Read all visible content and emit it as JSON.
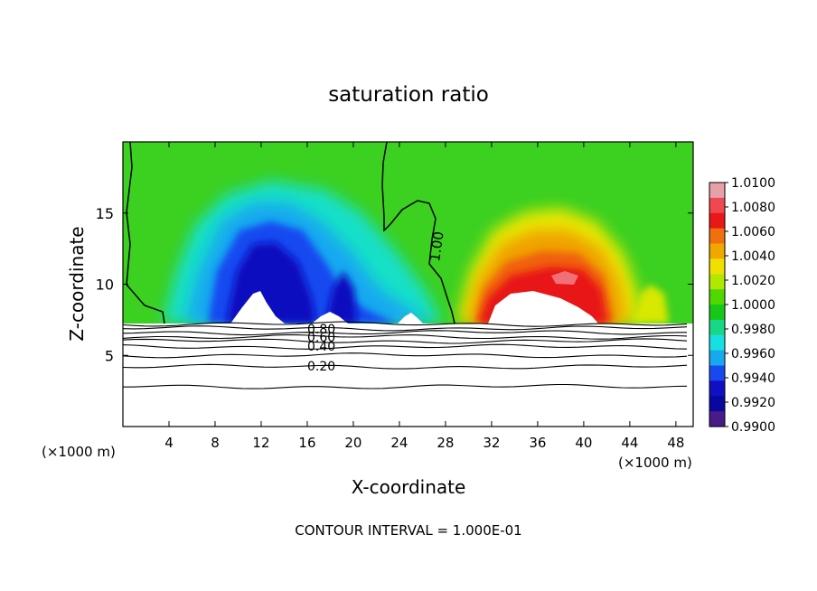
{
  "chart_data": {
    "type": "heatmap",
    "title": "saturation ratio",
    "xlabel": "X-coordinate",
    "ylabel": "Z-coordinate",
    "x_unit_left": "(×1000 m)",
    "x_unit_right": "(×1000 m)",
    "footer": "CONTOUR INTERVAL = 1.000E-01",
    "xlim": [
      0,
      49.5
    ],
    "ylim": [
      0,
      20
    ],
    "x_ticks": [
      4,
      8,
      12,
      16,
      20,
      24,
      28,
      32,
      36,
      40,
      44,
      48
    ],
    "y_ticks": [
      5,
      10,
      15
    ],
    "colorbar": {
      "min": 0.99,
      "max": 1.01,
      "tick_labels": [
        "1.0100",
        "1.0080",
        "1.0060",
        "1.0040",
        "1.0020",
        "1.0000",
        "0.9980",
        "0.9960",
        "0.9940",
        "0.9920",
        "0.9900"
      ],
      "colors": [
        "#e8a0a8",
        "#f04850",
        "#e81818",
        "#f07010",
        "#f0a800",
        "#f0e000",
        "#b0e800",
        "#50d800",
        "#18c818",
        "#18d888",
        "#18e0e0",
        "#18a8f0",
        "#1848f0",
        "#1010c0",
        "#0808a0",
        "#4a1a88"
      ]
    },
    "contour_labels": [
      "1.00",
      "0.80",
      "0.60",
      "0.40",
      "0.20"
    ],
    "contour_lines": [
      {
        "z": 7.2
      },
      {
        "z": 6.9
      },
      {
        "z": 6.6
      },
      {
        "z": 6.3
      },
      {
        "z": 6.0
      },
      {
        "z": 5.6
      },
      {
        "z": 5.0
      },
      {
        "z": 4.2
      },
      {
        "z": 2.8
      }
    ],
    "surface_z": 7.3,
    "wet_region_left": {
      "x_start": 0,
      "x_end": 29.5,
      "min_value": 0.9905,
      "center_x": [
        12,
        19,
        25
      ]
    },
    "supersat_region_right": {
      "x_start": 29.5,
      "x_end": 49.5,
      "max_value": 1.0085,
      "center_x": [
        36,
        40
      ]
    }
  }
}
